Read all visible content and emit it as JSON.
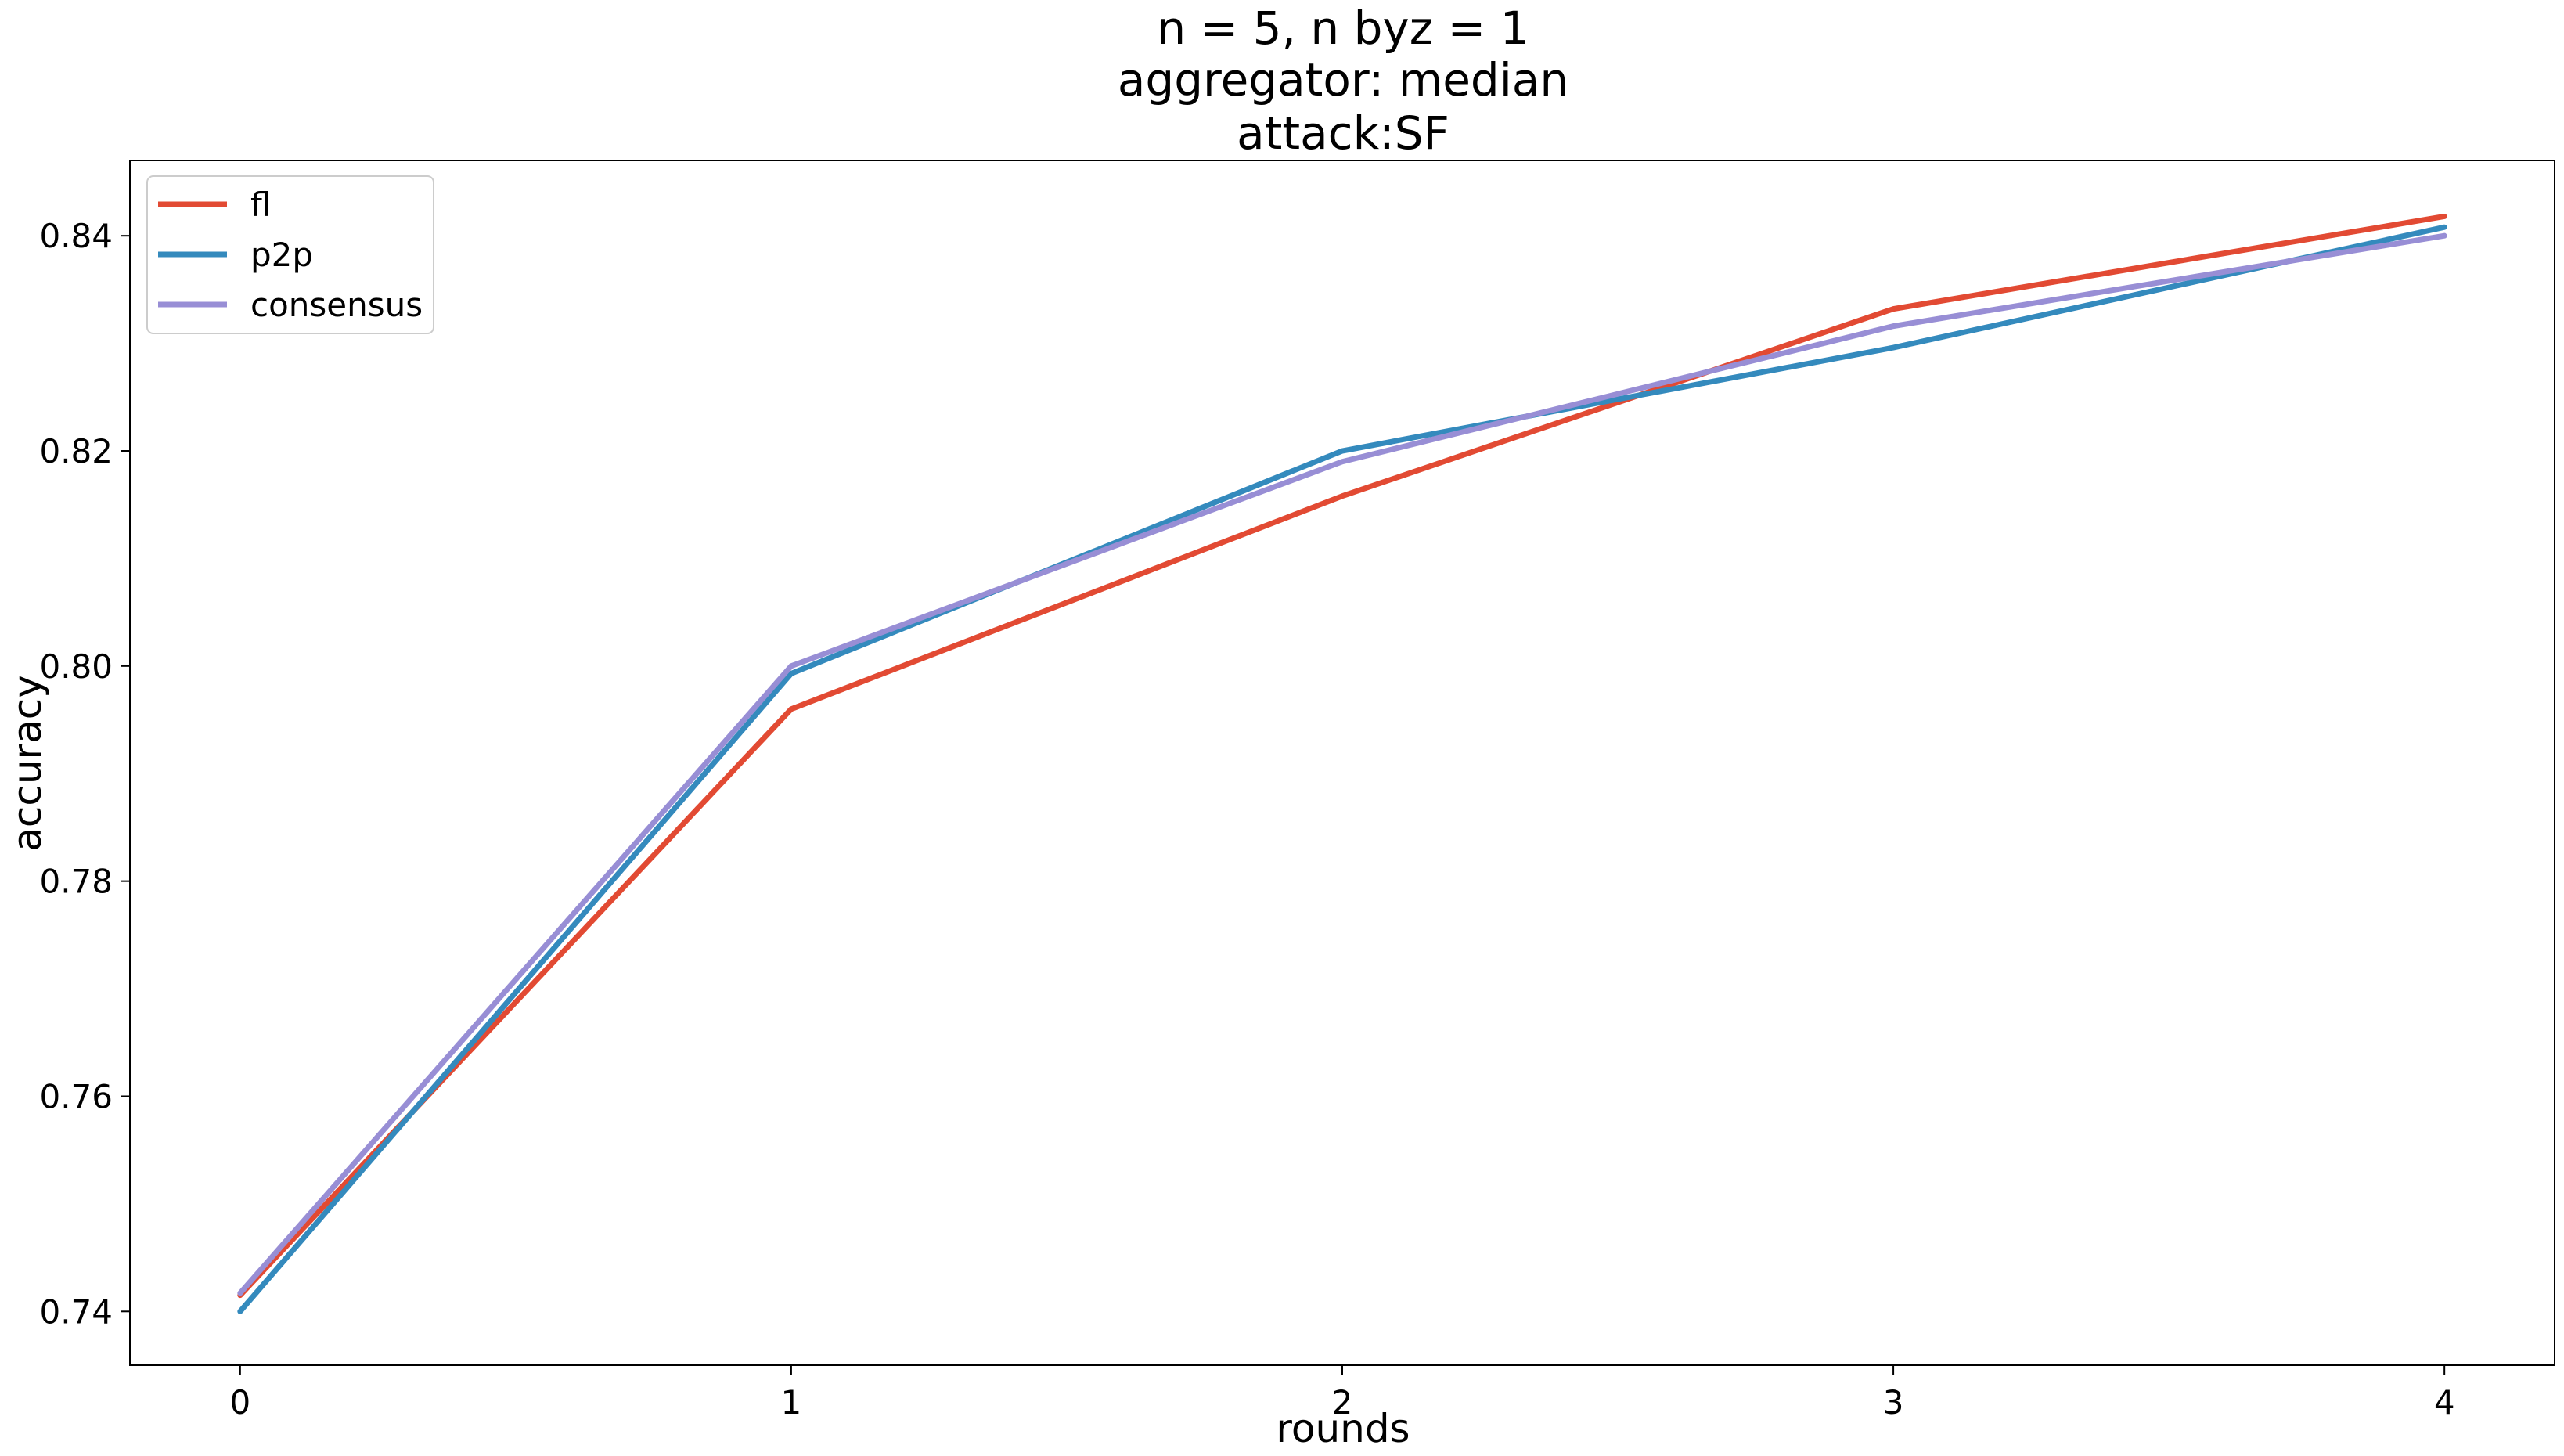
{
  "chart_data": {
    "type": "line",
    "title": [
      "n = 5, n byz = 1",
      "aggregator: median",
      "attack:SF"
    ],
    "xlabel": "rounds",
    "ylabel": "accuracy",
    "x": [
      0,
      1,
      2,
      3,
      4
    ],
    "xlim": [
      -0.2,
      4.2
    ],
    "ylim": [
      0.735,
      0.847
    ],
    "xticks": [
      0,
      1,
      2,
      3,
      4
    ],
    "xtick_labels": [
      "0",
      "1",
      "2",
      "3",
      "4"
    ],
    "yticks": [
      0.74,
      0.76,
      0.78,
      0.8,
      0.82,
      0.84
    ],
    "ytick_labels": [
      "0.74",
      "0.76",
      "0.78",
      "0.80",
      "0.82",
      "0.84"
    ],
    "grid": false,
    "legend_position": "upper-left",
    "series": [
      {
        "name": "fl",
        "color": "#E24A33",
        "values": [
          0.7415,
          0.796,
          0.8158,
          0.8332,
          0.8418
        ]
      },
      {
        "name": "p2p",
        "color": "#348ABD",
        "values": [
          0.74,
          0.7993,
          0.82,
          0.8296,
          0.8408
        ]
      },
      {
        "name": "consensus",
        "color": "#988ED5",
        "values": [
          0.7417,
          0.8,
          0.819,
          0.8316,
          0.84
        ]
      }
    ]
  }
}
